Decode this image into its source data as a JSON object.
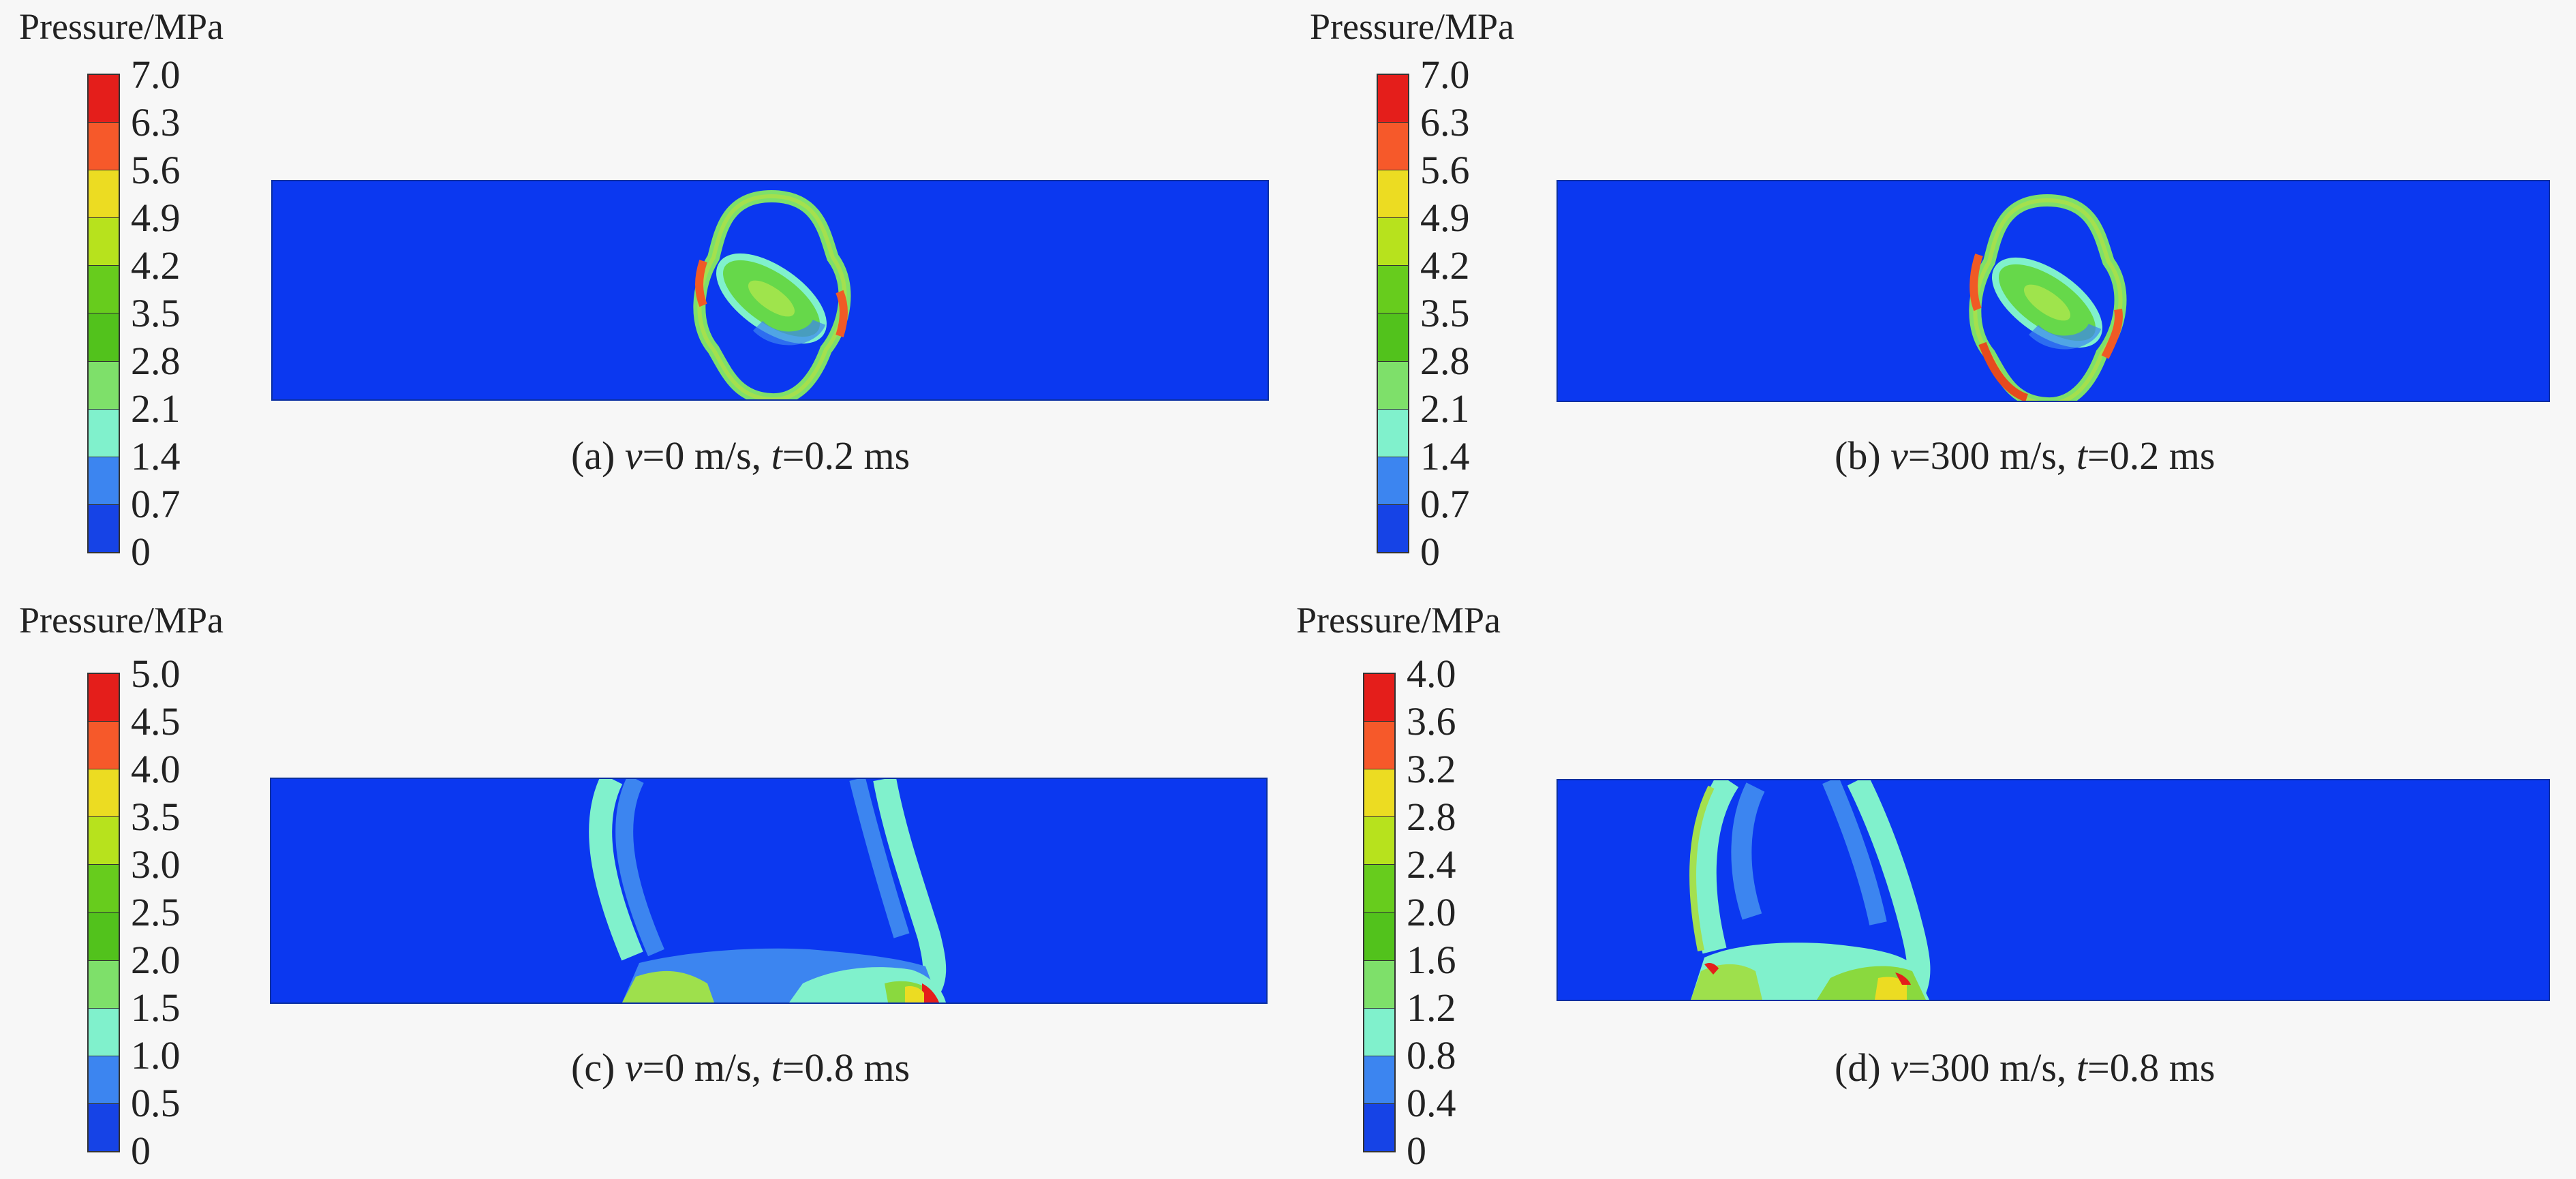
{
  "colors": {
    "scale_top_to_bottom": [
      "#e41e1b",
      "#f6592a",
      "#ecdc22",
      "#b7e21d",
      "#67cc1d",
      "#52c21c",
      "#7ee06a",
      "#80f1cc",
      "#3c85f0",
      "#1643e6"
    ],
    "field_background": "#0b38f0"
  },
  "panels": [
    {
      "legend_title": "Pressure/MPa",
      "ticks": [
        "7.0",
        "6.3",
        "5.6",
        "4.9",
        "4.2",
        "3.5",
        "2.8",
        "2.1",
        "1.4",
        "0.7",
        "0"
      ],
      "caption": {
        "label": "(a)",
        "var1": "v",
        "val1": "=0 m/s, ",
        "var2": "t",
        "val2": "=0.2 ms"
      }
    },
    {
      "legend_title": "Pressure/MPa",
      "ticks": [
        "7.0",
        "6.3",
        "5.6",
        "4.9",
        "4.2",
        "3.5",
        "2.8",
        "2.1",
        "1.4",
        "0.7",
        "0"
      ],
      "caption": {
        "label": "(b)",
        "var1": "v",
        "val1": "=300 m/s, ",
        "var2": "t",
        "val2": "=0.2 ms"
      }
    },
    {
      "legend_title": "Pressure/MPa",
      "ticks": [
        "5.0",
        "4.5",
        "4.0",
        "3.5",
        "3.0",
        "2.5",
        "2.0",
        "1.5",
        "1.0",
        "0.5",
        "0"
      ],
      "caption": {
        "label": "(c)",
        "var1": "v",
        "val1": "=0 m/s, ",
        "var2": "t",
        "val2": "=0.8 ms"
      }
    },
    {
      "legend_title": "Pressure/MPa",
      "ticks": [
        "4.0",
        "3.6",
        "3.2",
        "2.8",
        "2.4",
        "2.0",
        "1.6",
        "1.2",
        "0.8",
        "0.4",
        "0"
      ],
      "caption": {
        "label": "(d)",
        "var1": "v",
        "val1": "=300 m/s, ",
        "var2": "t",
        "val2": "=0.8 ms"
      }
    }
  ]
}
